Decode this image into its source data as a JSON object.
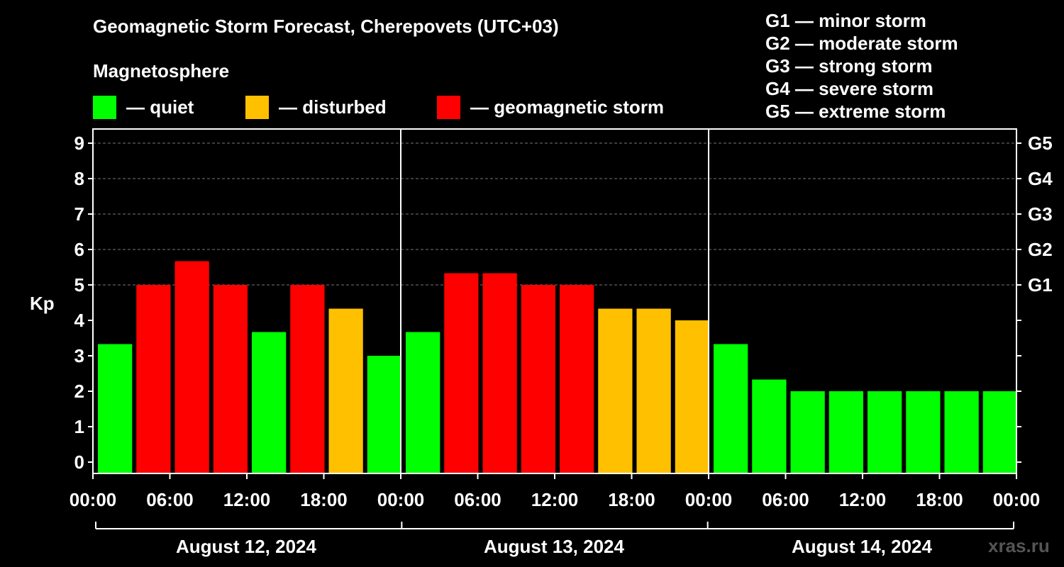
{
  "title": "Geomagnetic Storm Forecast, Cherepovets (UTC+03)",
  "magnetosphere_label": "Magnetosphere",
  "legend": [
    {
      "color": "#00ff00",
      "label": "— quiet"
    },
    {
      "color": "#ffc000",
      "label": "— disturbed"
    },
    {
      "color": "#ff0000",
      "label": "— geomagnetic storm"
    }
  ],
  "g_scale": [
    "G1 — minor storm",
    "G2 — moderate storm",
    "G3 — strong storm",
    "G4 — severe storm",
    "G5 — extreme storm"
  ],
  "site": "xras.ru",
  "chart_data": {
    "type": "bar",
    "ylabel": "Kp",
    "ylim": [
      0,
      9
    ],
    "yticks": [
      "0",
      "1",
      "2",
      "3",
      "4",
      "5",
      "6",
      "7",
      "8",
      "9"
    ],
    "right_ticks": [
      {
        "kp": 5,
        "label": "G1"
      },
      {
        "kp": 6,
        "label": "G2"
      },
      {
        "kp": 7,
        "label": "G3"
      },
      {
        "kp": 8,
        "label": "G4"
      },
      {
        "kp": 9,
        "label": "G5"
      }
    ],
    "xtick_labels": [
      "00:00",
      "06:00",
      "12:00",
      "18:00",
      "00:00",
      "06:00",
      "12:00",
      "18:00",
      "00:00",
      "06:00",
      "12:00",
      "18:00",
      "00:00"
    ],
    "days": [
      "August 12, 2024",
      "August 13, 2024",
      "August 14, 2024"
    ],
    "grid": "horizontal dashed",
    "values": [
      3.33,
      5.0,
      5.67,
      5.0,
      3.67,
      5.0,
      4.33,
      3.0,
      3.67,
      5.33,
      5.33,
      5.0,
      5.0,
      4.33,
      4.33,
      4.0,
      3.33,
      2.33,
      2.0,
      2.0,
      2.0,
      2.0,
      2.0,
      2.0
    ],
    "levels": [
      "quiet",
      "storm",
      "storm",
      "storm",
      "quiet",
      "storm",
      "disturbed",
      "quiet",
      "quiet",
      "storm",
      "storm",
      "storm",
      "storm",
      "disturbed",
      "disturbed",
      "disturbed",
      "quiet",
      "quiet",
      "quiet",
      "quiet",
      "quiet",
      "quiet",
      "quiet",
      "quiet"
    ],
    "level_colors": {
      "quiet": "#00ff00",
      "disturbed": "#ffc000",
      "storm": "#ff0000"
    }
  }
}
